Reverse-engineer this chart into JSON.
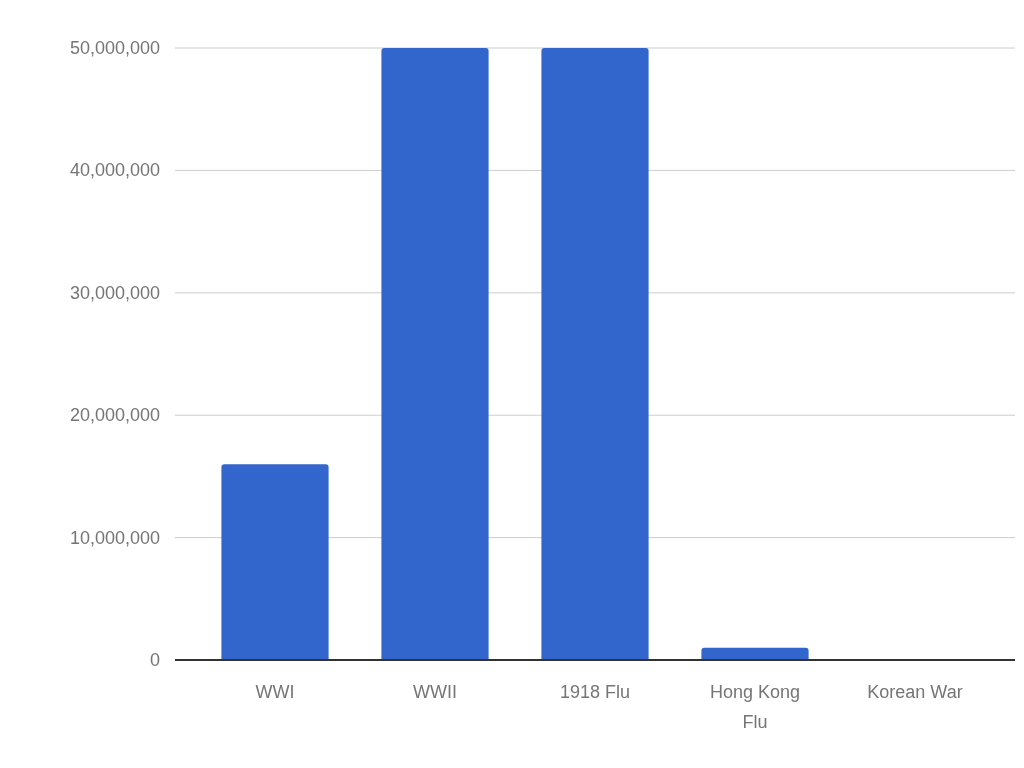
{
  "chart_data": {
    "type": "bar",
    "categories": [
      "WWI",
      "WWII",
      "1918 Flu",
      "Hong Kong Flu",
      "Korean War"
    ],
    "values": [
      16000000,
      50000000,
      50000000,
      1000000,
      0
    ],
    "color": "#3366cc",
    "ylim": [
      0,
      50000000
    ],
    "yticks": [
      0,
      {
        "value": 10000000,
        "label": "10,000,000"
      },
      {
        "value": 20000000,
        "label": "20,000,000"
      },
      {
        "value": 30000000,
        "label": "30,000,000"
      },
      {
        "value": 40000000,
        "label": "40,000,000"
      },
      {
        "value": 50000000,
        "label": "50,000,000"
      }
    ],
    "grid": "y"
  }
}
